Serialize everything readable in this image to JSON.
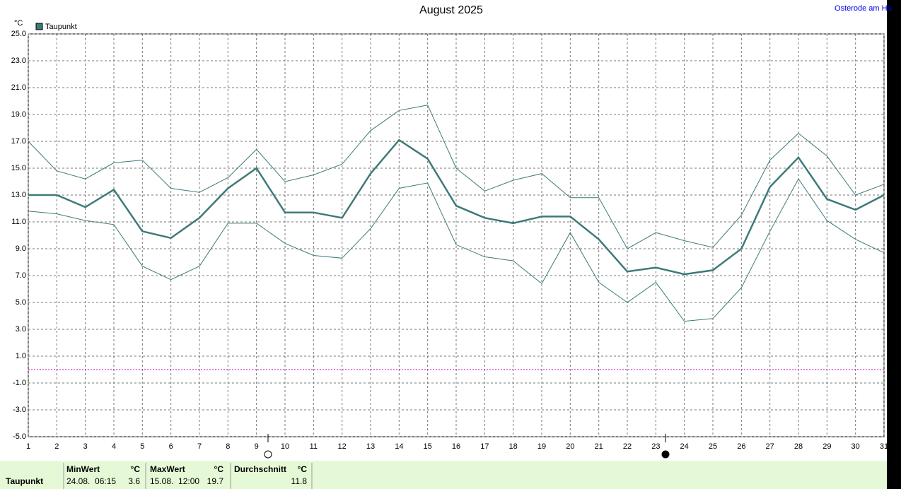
{
  "chart_data": {
    "type": "line",
    "title": "August 2025",
    "subtitle": "Osterode am Ha",
    "y_label": "°C",
    "x": [
      1,
      2,
      3,
      4,
      5,
      6,
      7,
      8,
      9,
      10,
      11,
      12,
      13,
      14,
      15,
      16,
      17,
      18,
      19,
      20,
      21,
      22,
      23,
      24,
      25,
      26,
      27,
      28,
      29,
      30,
      31
    ],
    "xlim": [
      1,
      31
    ],
    "xticks": [
      1,
      2,
      3,
      4,
      5,
      6,
      7,
      8,
      9,
      10,
      11,
      12,
      13,
      14,
      15,
      16,
      17,
      18,
      19,
      20,
      21,
      22,
      23,
      24,
      25,
      26,
      27,
      28,
      29,
      30,
      31
    ],
    "ylim": [
      -5,
      25
    ],
    "yticks": [
      {
        "value": -5,
        "label": "-5.0"
      },
      {
        "value": -3,
        "label": "-3.0"
      },
      {
        "value": -1,
        "label": "-1.0"
      },
      {
        "value": 1,
        "label": "1.0"
      },
      {
        "value": 3,
        "label": "3.0"
      },
      {
        "value": 5,
        "label": "5.0"
      },
      {
        "value": 7,
        "label": "7.0"
      },
      {
        "value": 9,
        "label": "9.0"
      },
      {
        "value": 11,
        "label": "11.0"
      },
      {
        "value": 13,
        "label": "13.0"
      },
      {
        "value": 15,
        "label": "15.0"
      },
      {
        "value": 17,
        "label": "17.0"
      },
      {
        "value": 19,
        "label": "19.0"
      },
      {
        "value": 21,
        "label": "21.0"
      },
      {
        "value": 23,
        "label": "23.0"
      },
      {
        "value": 25,
        "label": "25.0"
      }
    ],
    "grid": true,
    "reference_line": 0,
    "reference_color": "#c000c0",
    "series": [
      {
        "name": "Taupunkt",
        "color": "#3d7a78",
        "width": 2.5,
        "values": [
          13.0,
          13.0,
          12.1,
          13.4,
          10.3,
          9.8,
          11.3,
          13.5,
          15.0,
          11.7,
          11.7,
          11.3,
          14.6,
          17.1,
          15.7,
          12.2,
          11.3,
          10.9,
          11.4,
          11.4,
          9.7,
          7.3,
          7.6,
          7.1,
          7.4,
          9.0,
          13.6,
          15.8,
          12.7,
          11.9,
          13.0
        ]
      },
      {
        "color": "#3d7a78",
        "width": 1,
        "values": [
          17.0,
          14.8,
          14.2,
          15.4,
          15.6,
          13.5,
          13.2,
          14.3,
          16.4,
          14.0,
          14.5,
          15.3,
          17.8,
          19.3,
          19.7,
          15.0,
          13.3,
          14.1,
          14.6,
          12.8,
          12.8,
          9.0,
          10.2,
          9.6,
          9.1,
          11.5,
          15.6,
          17.6,
          15.9,
          13.0,
          13.8
        ]
      },
      {
        "color": "#3d7a78",
        "width": 1,
        "values": [
          11.8,
          11.6,
          11.1,
          10.8,
          7.7,
          6.7,
          7.7,
          10.9,
          10.9,
          9.4,
          8.5,
          8.3,
          10.5,
          13.5,
          13.9,
          9.3,
          8.4,
          8.1,
          6.4,
          10.2,
          6.5,
          5.0,
          6.5,
          3.6,
          3.8,
          6.1,
          10.3,
          14.2,
          11.1,
          9.7,
          8.7
        ]
      }
    ]
  },
  "summary": {
    "label": "Taupunkt",
    "min": {
      "header": "MinWert",
      "unit": "°C",
      "time": "24.08.  06:15",
      "value": "3.6"
    },
    "max": {
      "header": "MaxWert",
      "unit": "°C",
      "time": "15.08.  12:00",
      "value": "19.7"
    },
    "avg": {
      "header": "Durchschnitt",
      "unit": "°C",
      "value": "11.8"
    }
  }
}
